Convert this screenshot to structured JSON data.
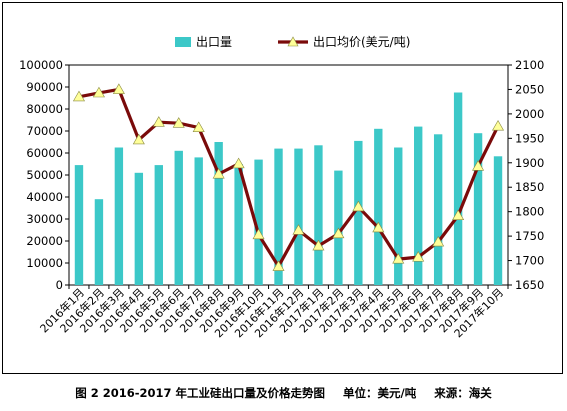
{
  "chart_data": {
    "type": "bar+line",
    "categories": [
      "2016年1月",
      "2016年2月",
      "2016年3月",
      "2016年4月",
      "2016年5月",
      "2016年6月",
      "2016年7月",
      "2016年8月",
      "2016年9月",
      "2016年10月",
      "2016年11月",
      "2016年12月",
      "2017年1月",
      "2017年2月",
      "2017年3月",
      "2017年4月",
      "2017年5月",
      "2017年6月",
      "2017年7月",
      "2017年8月",
      "2017年9月",
      "2017年10月"
    ],
    "series": [
      {
        "name": "出口量",
        "type": "bar",
        "axis": "left",
        "color": "#3cc8c8",
        "values": [
          54500,
          39000,
          62500,
          51000,
          54500,
          61000,
          58000,
          65000,
          55000,
          57000,
          62000,
          62000,
          63500,
          52000,
          65500,
          71000,
          62500,
          72000,
          68500,
          87500,
          69000,
          58500
        ]
      },
      {
        "name": "出口均价(美元/吨)",
        "type": "line",
        "axis": "right",
        "color": "#7a0a0a",
        "marker_color": "#ffff99",
        "values": [
          2035,
          2043,
          2050,
          1947,
          1983,
          1981,
          1972,
          1877,
          1898,
          1753,
          1688,
          1762,
          1730,
          1755,
          1810,
          1767,
          1703,
          1707,
          1738,
          1792,
          1893,
          1975
        ]
      }
    ],
    "y_left": {
      "min": 0,
      "max": 100000,
      "step": 10000,
      "ticks": [
        "0",
        "10000",
        "20000",
        "30000",
        "40000",
        "50000",
        "60000",
        "70000",
        "80000",
        "90000",
        "100000"
      ]
    },
    "y_right": {
      "min": 1650,
      "max": 2100,
      "step": 50,
      "ticks": [
        "1650",
        "1700",
        "1750",
        "1800",
        "1850",
        "1900",
        "1950",
        "2000",
        "2050",
        "2100"
      ]
    },
    "legend_position": "top-center",
    "grid": false
  },
  "caption": {
    "figure": "图 2   2016-2017 年工业硅出口量及价格走势图",
    "unit": "单位：美元/吨",
    "source": "来源：海关"
  }
}
